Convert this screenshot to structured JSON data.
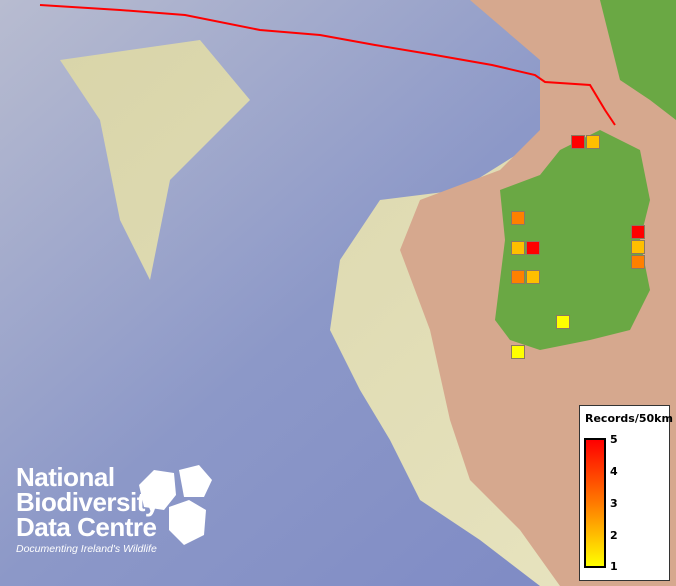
{
  "map": {
    "colors": {
      "ocean": "#8c98c8",
      "shelf": "#e4e0b4",
      "land": "#d8a890",
      "ireland": "#6aa844",
      "boundary": "#ff0000"
    },
    "records": [
      5,
      2,
      3,
      2,
      5,
      3,
      2,
      1,
      1,
      5,
      2,
      3
    ]
  },
  "legend": {
    "title": "Records/50km",
    "ticks": [
      "5",
      "4",
      "3",
      "2",
      "1"
    ],
    "colors": {
      "max": "#ff0000",
      "mid": "#ff8000",
      "min": "#ffff00"
    }
  },
  "logo": {
    "lines": [
      "National",
      "Biodiversity",
      "Data Centre"
    ],
    "tagline": "Documenting Ireland's Wildlife"
  }
}
